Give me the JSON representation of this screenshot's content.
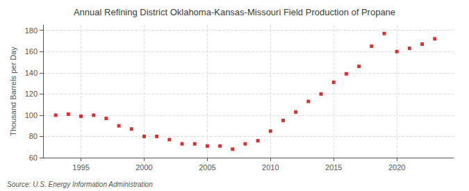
{
  "chart_data": {
    "type": "scatter",
    "title": "Annual Refining District Oklahoma-Kansas-Missouri Field Production of Propane",
    "ylabel": "Thousand Barrels per Day",
    "source": "Source: U.S. Energy Information Administration",
    "x": [
      1993,
      1994,
      1995,
      1996,
      1997,
      1998,
      1999,
      2000,
      2001,
      2002,
      2003,
      2004,
      2005,
      2006,
      2007,
      2008,
      2009,
      2010,
      2011,
      2012,
      2013,
      2014,
      2015,
      2016,
      2017,
      2018,
      2019,
      2020,
      2021,
      2022,
      2023
    ],
    "values": [
      100,
      101,
      99,
      100,
      97,
      90,
      87,
      80,
      80,
      77,
      73,
      73,
      71,
      71,
      68,
      73,
      76,
      85,
      95,
      103,
      113,
      120,
      131,
      139,
      146,
      165,
      177,
      160,
      163,
      167,
      172
    ],
    "color": "#cc0000",
    "marker": "square",
    "xlim": [
      1992.0,
      2024.5
    ],
    "xticks": [
      1995,
      2000,
      2005,
      2010,
      2015,
      2020
    ],
    "ylim": [
      60,
      185
    ],
    "yticks": [
      60,
      80,
      100,
      120,
      140,
      160,
      180
    ],
    "grid": true
  }
}
